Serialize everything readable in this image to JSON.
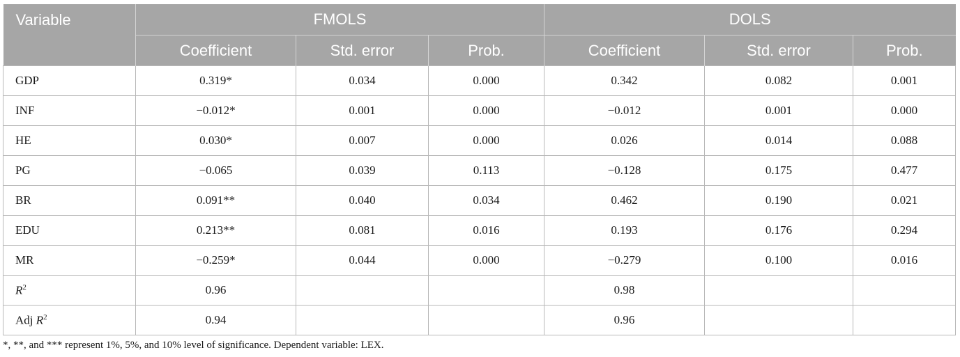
{
  "header": {
    "variable": "Variable",
    "groups": [
      "FMOLS",
      "DOLS"
    ],
    "subcolumns": [
      "Coefficient",
      "Std. error",
      "Prob.",
      "Coefficient",
      "Std. error",
      "Prob."
    ]
  },
  "rows": [
    {
      "label": "GDP",
      "cells": [
        "0.319*",
        "0.034",
        "0.000",
        "0.342",
        "0.082",
        "0.001"
      ]
    },
    {
      "label": "INF",
      "cells": [
        "−0.012*",
        "0.001",
        "0.000",
        "−0.012",
        "0.001",
        "0.000"
      ]
    },
    {
      "label": "HE",
      "cells": [
        "0.030*",
        "0.007",
        "0.000",
        "0.026",
        "0.014",
        "0.088"
      ]
    },
    {
      "label": "PG",
      "cells": [
        "−0.065",
        "0.039",
        "0.113",
        "−0.128",
        "0.175",
        "0.477"
      ]
    },
    {
      "label": "BR",
      "cells": [
        "0.091**",
        "0.040",
        "0.034",
        "0.462",
        "0.190",
        "0.021"
      ]
    },
    {
      "label": "EDU",
      "cells": [
        "0.213**",
        "0.081",
        "0.016",
        "0.193",
        "0.176",
        "0.294"
      ]
    },
    {
      "label": "MR",
      "cells": [
        "−0.259*",
        "0.044",
        "0.000",
        "−0.279",
        "0.100",
        "0.016"
      ]
    },
    {
      "label_prefix": "",
      "label_italic": "R",
      "label_sup": "2",
      "cells": [
        "0.96",
        "",
        "",
        "0.98",
        "",
        ""
      ]
    },
    {
      "label_prefix": "Adj ",
      "label_italic": "R",
      "label_sup": "2",
      "cells": [
        "0.94",
        "",
        "",
        "0.96",
        "",
        ""
      ]
    }
  ],
  "note": "*, **, and *** represent 1%, 5%, and 10% level of significance. Dependent variable: LEX.",
  "colors": {
    "header_bg": "#a6a6a6",
    "header_text": "#ffffff",
    "border": "#b8b8b8"
  }
}
